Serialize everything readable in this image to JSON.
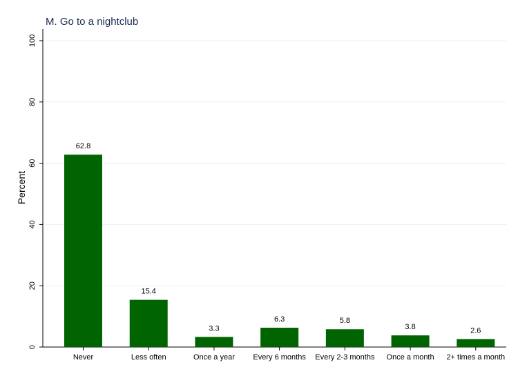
{
  "chart_data": {
    "type": "bar",
    "title": "M. Go to a nightclub",
    "xlabel": "",
    "ylabel": "Percent",
    "ylim": [
      0,
      100
    ],
    "yticks": [
      0,
      20,
      40,
      60,
      80,
      100
    ],
    "categories": [
      "Never",
      "Less often",
      "Once a year",
      "Every 6 months",
      "Every 2-3 months",
      "Once a month",
      "2+ times a month"
    ],
    "values": [
      62.8,
      15.4,
      3.3,
      6.3,
      5.8,
      3.8,
      2.6
    ],
    "data_labels": [
      "62.8",
      "15.4",
      "3.3",
      "6.3",
      "5.8",
      "3.8",
      "2.6"
    ],
    "bar_color": "#006400",
    "grid": true,
    "legend": "none"
  }
}
